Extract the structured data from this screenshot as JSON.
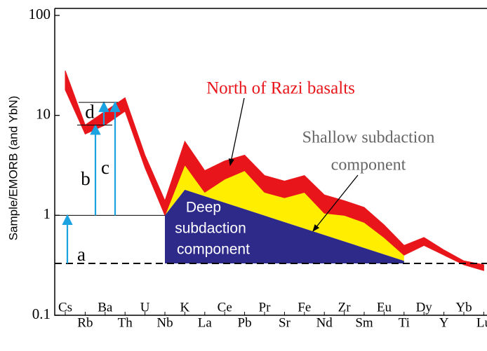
{
  "chart_data": {
    "type": "spider",
    "ylabel": "Sample/EMORB (and YbN)",
    "log_scale": true,
    "ylim": [
      0.1,
      100
    ],
    "yticks": [
      0.1,
      1,
      10,
      100
    ],
    "categories": [
      "Cs",
      "Rb",
      "Ba",
      "Th",
      "U",
      "Nb",
      "K",
      "La",
      "Ce",
      "Pb",
      "Pr",
      "Sr",
      "Fe",
      "Nd",
      "Zr",
      "Sm",
      "Eu",
      "Ti",
      "Dy",
      "Y",
      "Yb",
      "Lu"
    ],
    "series": [
      {
        "color": "#e8161b",
        "values": [
          28,
          8,
          11,
          15,
          4,
          1.4,
          5.5,
          2.8,
          3.5,
          4.0,
          2.5,
          2.2,
          2.5,
          1.6,
          1.4,
          1.2,
          0.8,
          0.5,
          0.6,
          0.45,
          0.35,
          0.32
        ]
      },
      {
        "color": "#e8161b",
        "values": [
          18,
          6.5,
          8,
          11,
          3,
          1.0,
          3.2,
          1.7,
          2.3,
          2.8,
          1.7,
          1.5,
          1.7,
          1.05,
          1.0,
          0.85,
          0.6,
          0.4,
          0.5,
          0.4,
          0.32,
          0.28
        ]
      },
      {
        "color": "#2e2a8a",
        "values": [
          null,
          null,
          null,
          null,
          null,
          1.0,
          1.8,
          null,
          null,
          null,
          null,
          null,
          null,
          null,
          null,
          null,
          null,
          0.35,
          null,
          null,
          null,
          null
        ]
      }
    ],
    "fill_color": "#ffee00",
    "baseline": 0.33,
    "reference": 1,
    "arrows": [
      {
        "label": "a",
        "from": 0.33,
        "to": 1
      },
      {
        "label": "b",
        "from": 1,
        "to": 8
      },
      {
        "label": "d",
        "from": 8,
        "to": 13.5
      },
      {
        "label": "c",
        "from": 1,
        "to": 13.5
      }
    ],
    "annotations": {
      "north": "North of Razi basalts",
      "shallow": [
        "Shallow subdaction",
        "component"
      ],
      "deep": [
        "Deep",
        "subdaction",
        "component"
      ]
    }
  }
}
